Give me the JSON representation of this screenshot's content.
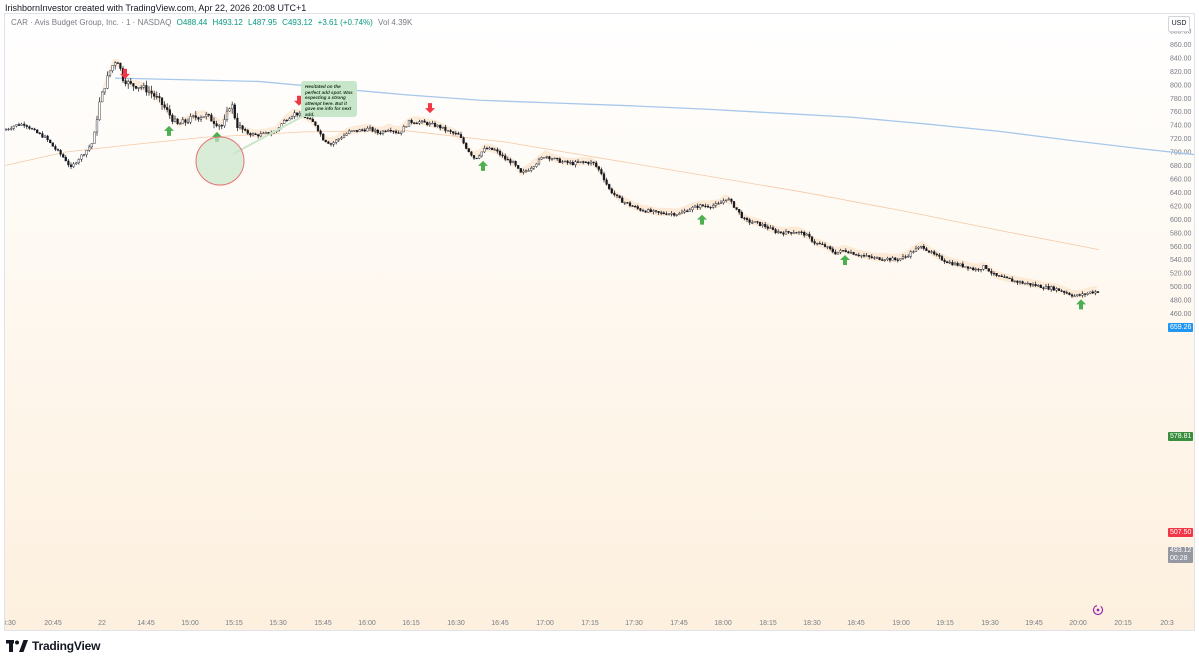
{
  "caption": "IrishbornInvestor created with TradingView.com, Apr 22, 2026 20:08 UTC+1",
  "legend": {
    "symbol": "CAR · Avis Budget Group, Inc. · 1 · NASDAQ",
    "o": "O488.44",
    "h": "H493.12",
    "l": "L487.95",
    "c": "C493.12",
    "change": "+3.61 (+0.74%)",
    "vol": "Vol 4.39K"
  },
  "currency": "USD",
  "note": "Hesitated on the perfect add spot. Was expecting a strong attempt here. But it gave me info for next add.",
  "price_tags": {
    "blue": "659.26",
    "green": "578.81",
    "red": "507.50",
    "last": "493.12",
    "countdown": "00:28"
  },
  "brand": "TradingView",
  "colors": {
    "up": "#ffffff",
    "down": "#131722",
    "blue_line": "#a7c7ec",
    "blue_tag": "#2196f3",
    "green_tag": "#388e3c",
    "red_tag": "#f23645",
    "gray_tag": "#9598a1",
    "buy_arrow": "#4caf50",
    "sell_arrow": "#f23645"
  },
  "chart_data": {
    "type": "candlestick",
    "y_ticks": [
      "880.00",
      "860.00",
      "840.00",
      "820.00",
      "800.00",
      "780.00",
      "760.00",
      "740.00",
      "720.00",
      "700.00",
      "680.00",
      "660.00",
      "640.00",
      "620.00",
      "600.00",
      "580.00",
      "560.00",
      "540.00",
      "520.00",
      "500.00",
      "480.00",
      "460.00"
    ],
    "x_ticks": [
      "3:30",
      "20:45",
      "22",
      "14:45",
      "15:00",
      "15:15",
      "15:30",
      "15:45",
      "16:00",
      "16:15",
      "16:30",
      "16:45",
      "17:00",
      "17:15",
      "17:30",
      "17:45",
      "18:00",
      "18:15",
      "18:30",
      "18:45",
      "19:00",
      "19:15",
      "19:30",
      "19:45",
      "20:00",
      "20:15",
      "20:3"
    ],
    "ylim": [
      448,
      888
    ],
    "sell_signals": [
      {
        "x": "14:40",
        "price": 800
      },
      {
        "x": "15:35",
        "price": 760
      },
      {
        "x": "16:20",
        "price": 748
      }
    ],
    "buy_signals": [
      {
        "x": "14:55",
        "price": 742
      },
      {
        "x": "15:10",
        "price": 733
      },
      {
        "x": "16:40",
        "price": 690
      },
      {
        "x": "17:55",
        "price": 610
      },
      {
        "x": "18:45",
        "price": 550
      },
      {
        "x": "20:00",
        "price": 485
      }
    ],
    "blue_line": [
      [
        -35,
        810
      ],
      [
        5,
        805
      ],
      [
        25,
        795
      ],
      [
        45,
        785
      ],
      [
        65,
        777
      ],
      [
        85,
        773
      ],
      [
        105,
        769
      ],
      [
        125,
        764
      ],
      [
        145,
        758
      ],
      [
        165,
        752
      ],
      [
        185,
        742
      ],
      [
        205,
        731
      ],
      [
        225,
        717
      ],
      [
        245,
        704
      ],
      [
        265,
        692
      ],
      [
        285,
        680
      ],
      [
        305,
        670
      ],
      [
        312,
        659.26
      ]
    ]
  }
}
